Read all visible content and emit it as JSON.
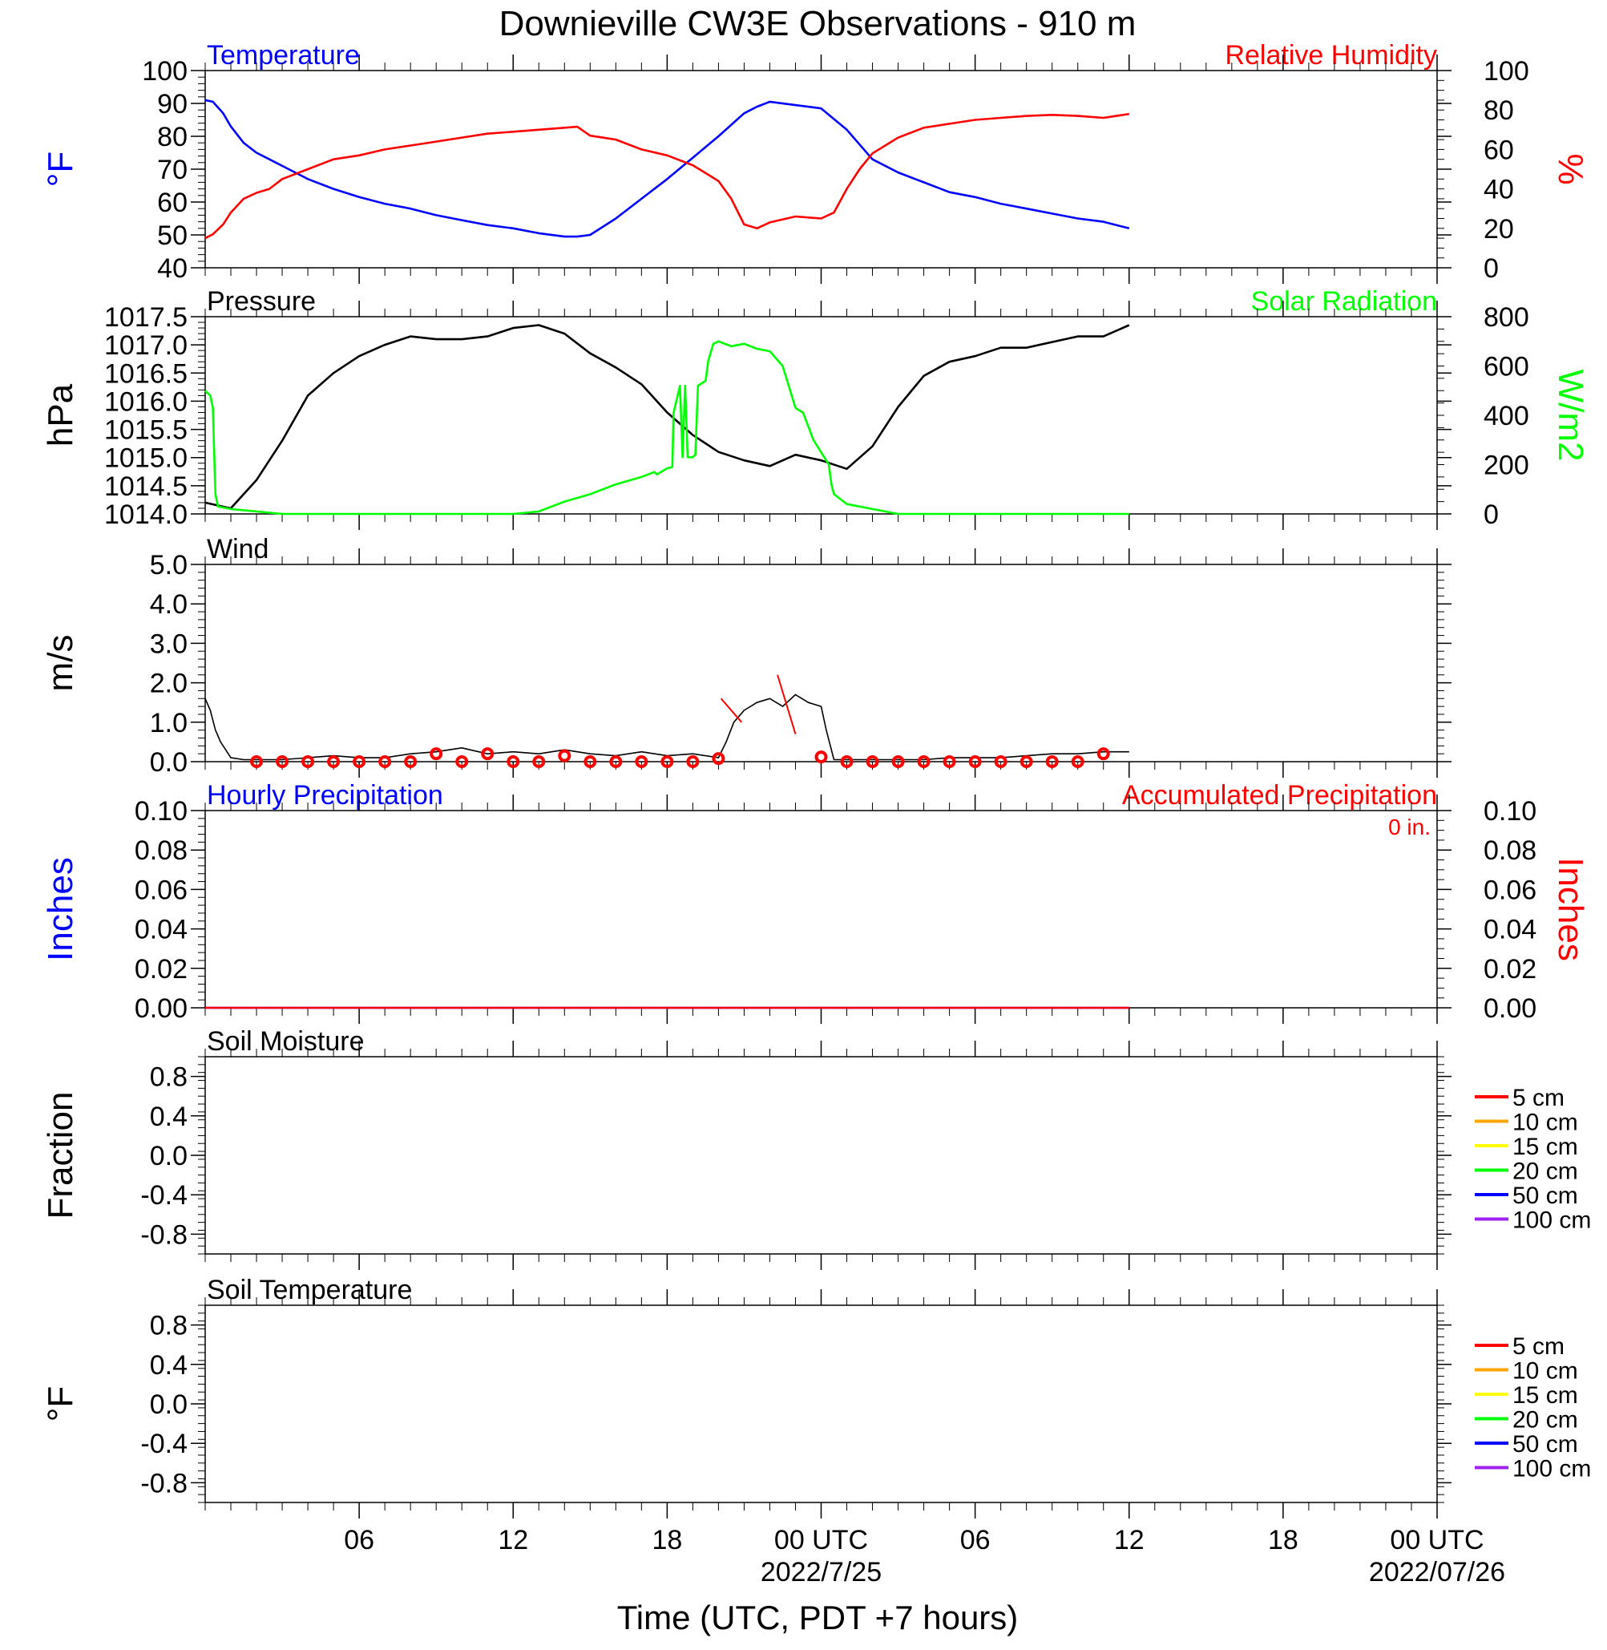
{
  "page": {
    "title": "Downieville CW3E Observations - 910 m",
    "xaxis_label": "Time (UTC, PDT +7 hours)",
    "x_ticks": [
      "06",
      "12",
      "18",
      "00 UTC",
      "06",
      "12",
      "18",
      "00 UTC"
    ],
    "x_dates": [
      "2022/7/25",
      "2022/07/26"
    ]
  },
  "colors": {
    "blue": "#0000ff",
    "red": "#ff0000",
    "green": "#00ff00",
    "black": "#000000",
    "orange": "#ffa500",
    "yellow": "#ffff00",
    "purple": "#a020f0"
  },
  "chart_data": [
    {
      "type": "line",
      "title_left": "Temperature",
      "title_right": "Relative Humidity",
      "ylabel_left": "°F",
      "ylabel_right": "%",
      "xlim": [
        0,
        48
      ],
      "ylim_left": [
        40,
        100
      ],
      "ylim_right": [
        0,
        100
      ],
      "yticks_left": [
        "40",
        "50",
        "60",
        "70",
        "80",
        "90",
        "100"
      ],
      "yticks_right": [
        "0",
        "20",
        "40",
        "60",
        "80",
        "100"
      ],
      "series": [
        {
          "name": "Temperature",
          "axis": "left",
          "color": "blue",
          "x": [
            0,
            0.3,
            0.7,
            1,
            1.5,
            2,
            2.5,
            3,
            4,
            5,
            6,
            7,
            8,
            9,
            10,
            11,
            12,
            13,
            14,
            14.5,
            15,
            16,
            17,
            18,
            19,
            20,
            21,
            21.5,
            22,
            23,
            24,
            25,
            26,
            27,
            28,
            29,
            30,
            31,
            32,
            33,
            34,
            35,
            36
          ],
          "y": [
            91,
            90.5,
            87,
            83,
            78,
            75,
            73,
            71,
            67,
            64,
            61.5,
            59.5,
            58,
            56,
            54.5,
            53,
            52,
            50.5,
            49.5,
            49.5,
            50,
            55,
            61,
            67,
            73.5,
            80,
            87,
            89,
            90.5,
            89.5,
            88.5,
            82,
            73,
            69,
            66,
            63,
            61.5,
            59.5,
            58,
            56.5,
            55,
            54,
            52
          ]
        },
        {
          "name": "Relative Humidity",
          "axis": "right",
          "color": "red",
          "x": [
            0,
            0.3,
            0.7,
            1,
            1.5,
            2,
            2.5,
            3,
            4,
            5,
            6,
            7,
            8,
            9,
            10,
            11,
            12,
            13,
            14,
            14.5,
            15,
            16,
            17,
            18,
            19,
            19.5,
            20,
            20.5,
            21,
            21.5,
            22,
            23,
            24,
            24.5,
            25,
            25.5,
            26,
            27,
            28,
            29,
            30,
            31,
            32,
            33,
            34,
            35,
            36
          ],
          "y": [
            15,
            17,
            22,
            28,
            35,
            38,
            40,
            45,
            50,
            55,
            57,
            60,
            62,
            64,
            66,
            68,
            69,
            70,
            71,
            71.5,
            67,
            65,
            60,
            57,
            52,
            48,
            44,
            35,
            22,
            20,
            23,
            26,
            25,
            28,
            40,
            50,
            58,
            66,
            71,
            73,
            75,
            76,
            77,
            77.5,
            77,
            76,
            78
          ]
        }
      ]
    },
    {
      "type": "line",
      "title_left": "Pressure",
      "title_right": "Solar Radiation",
      "ylabel_left": "hPa",
      "ylabel_right": "W/m2",
      "xlim": [
        0,
        48
      ],
      "ylim_left": [
        1014.0,
        1017.5
      ],
      "ylim_right": [
        0,
        800
      ],
      "yticks_left": [
        "1014.0",
        "1014.5",
        "1015.0",
        "1015.5",
        "1016.0",
        "1016.5",
        "1017.0",
        "1017.5"
      ],
      "yticks_right": [
        "0",
        "200",
        "400",
        "600",
        "800"
      ],
      "series": [
        {
          "name": "Pressure",
          "axis": "left",
          "color": "black",
          "x": [
            0,
            0.5,
            1,
            2,
            3,
            4,
            5,
            6,
            7,
            8,
            9,
            10,
            11,
            12,
            13,
            14,
            15,
            16,
            17,
            18,
            19,
            20,
            21,
            22,
            23,
            24,
            25,
            26,
            27,
            28,
            29,
            30,
            31,
            32,
            33,
            34,
            35,
            36
          ],
          "y": [
            1014.2,
            1014.15,
            1014.1,
            1014.6,
            1015.3,
            1016.1,
            1016.5,
            1016.8,
            1017.0,
            1017.15,
            1017.1,
            1017.1,
            1017.15,
            1017.3,
            1017.35,
            1017.2,
            1016.85,
            1016.6,
            1016.3,
            1015.8,
            1015.4,
            1015.1,
            1014.95,
            1014.85,
            1015.05,
            1014.95,
            1014.8,
            1015.2,
            1015.9,
            1016.45,
            1016.7,
            1016.8,
            1016.95,
            1016.95,
            1017.05,
            1017.15,
            1017.15,
            1017.35
          ]
        },
        {
          "name": "Solar Radiation",
          "axis": "right",
          "color": "green",
          "x": [
            0,
            0.2,
            0.3,
            0.35,
            0.4,
            0.5,
            1,
            2,
            3,
            4,
            5,
            6,
            7,
            8,
            9,
            10,
            11,
            12,
            13,
            14,
            15,
            16,
            17,
            17.5,
            17.6,
            18,
            18.2,
            18.25,
            18.5,
            18.6,
            18.7,
            18.8,
            19,
            19.1,
            19.2,
            19.5,
            19.6,
            19.8,
            20,
            20.5,
            21,
            21.5,
            22,
            22.5,
            23,
            23.3,
            23.7,
            24,
            24.3,
            24.4,
            24.5,
            25,
            26,
            27,
            28,
            29,
            30,
            31,
            32,
            33,
            34,
            35,
            36
          ],
          "y": [
            500,
            480,
            430,
            250,
            80,
            30,
            20,
            10,
            0,
            0,
            0,
            0,
            0,
            0,
            0,
            0,
            0,
            0,
            10,
            50,
            80,
            120,
            150,
            170,
            160,
            185,
            190,
            410,
            520,
            230,
            520,
            230,
            230,
            240,
            520,
            540,
            620,
            690,
            700,
            680,
            690,
            670,
            660,
            600,
            430,
            410,
            300,
            250,
            200,
            120,
            80,
            40,
            20,
            0,
            0,
            0,
            0,
            0,
            0,
            0,
            0,
            0,
            0
          ]
        }
      ]
    },
    {
      "type": "line",
      "title_left": "Wind",
      "ylabel_left": "m/s",
      "xlim": [
        0,
        48
      ],
      "ylim_left": [
        0,
        5
      ],
      "yticks_left": [
        "0.0",
        "1.0",
        "2.0",
        "3.0",
        "4.0",
        "5.0"
      ],
      "series": [
        {
          "name": "Wind Speed",
          "axis": "left",
          "color": "black",
          "x": [
            0,
            0.2,
            0.4,
            0.6,
            0.8,
            1,
            1.5,
            2,
            3,
            4,
            5,
            6,
            7,
            8,
            9,
            10,
            11,
            12,
            13,
            14,
            15,
            16,
            17,
            18,
            19,
            20,
            20.3,
            20.6,
            21,
            21.5,
            22,
            22.5,
            23,
            23.5,
            24,
            24.2,
            24.5,
            25,
            26,
            27,
            28,
            29,
            30,
            31,
            32,
            33,
            34,
            35,
            36
          ],
          "y": [
            1.6,
            1.3,
            0.8,
            0.5,
            0.3,
            0.1,
            0.05,
            0.05,
            0.05,
            0.1,
            0.15,
            0.1,
            0.1,
            0.2,
            0.25,
            0.35,
            0.2,
            0.25,
            0.2,
            0.3,
            0.2,
            0.15,
            0.25,
            0.15,
            0.2,
            0.1,
            0.5,
            1.0,
            1.3,
            1.5,
            1.6,
            1.4,
            1.7,
            1.5,
            1.4,
            0.8,
            0.05,
            0.05,
            0.05,
            0.05,
            0.05,
            0.1,
            0.1,
            0.1,
            0.15,
            0.2,
            0.2,
            0.25,
            0.25
          ]
        },
        {
          "name": "Hourly Wind",
          "axis": "left",
          "color": "red",
          "x": [
            2,
            3,
            4,
            5,
            6,
            7,
            8,
            9,
            10,
            11,
            12,
            13,
            14,
            15,
            16,
            17,
            18,
            19,
            20,
            24,
            25,
            26,
            27,
            28,
            29,
            30,
            31,
            32,
            33,
            34,
            35
          ],
          "y": [
            0.0,
            0.0,
            0.0,
            0.0,
            0.0,
            0.0,
            0.0,
            0.2,
            0.0,
            0.2,
            0.0,
            0.0,
            0.15,
            0.0,
            0.0,
            0.0,
            0.0,
            0.0,
            0.08,
            0.12,
            0.0,
            0.0,
            0.0,
            0.0,
            0.0,
            0.0,
            0.0,
            0.0,
            0.0,
            0.0,
            0.2
          ]
        }
      ]
    },
    {
      "type": "line",
      "title_left": "Hourly Precipitation",
      "title_right": "Accumulated Precipitation",
      "annotation": "0 in.",
      "ylabel_left": "Inches",
      "ylabel_right": "Inches",
      "xlim": [
        0,
        48
      ],
      "ylim_left": [
        0,
        0.1
      ],
      "ylim_right": [
        0,
        0.1
      ],
      "yticks_left": [
        "0.00",
        "0.02",
        "0.04",
        "0.06",
        "0.08",
        "0.10"
      ],
      "yticks_right": [
        "0.00",
        "0.02",
        "0.04",
        "0.06",
        "0.08",
        "0.10"
      ],
      "series": [
        {
          "name": "Hourly Precipitation",
          "axis": "left",
          "color": "blue",
          "x": [
            0,
            36
          ],
          "y": [
            0,
            0
          ]
        },
        {
          "name": "Accumulated Precipitation",
          "axis": "right",
          "color": "red",
          "x": [
            0,
            36
          ],
          "y": [
            0,
            0
          ]
        }
      ]
    },
    {
      "type": "line",
      "title_left": "Soil Moisture",
      "ylabel_left": "Fraction",
      "xlim": [
        0,
        48
      ],
      "ylim_left": [
        -1,
        1
      ],
      "yticks_left": [
        "-0.8",
        "-0.4",
        "0.0",
        "0.4",
        "0.8"
      ],
      "legend": [
        {
          "label": "5 cm",
          "color": "red"
        },
        {
          "label": "10 cm",
          "color": "orange"
        },
        {
          "label": "15 cm",
          "color": "yellow"
        },
        {
          "label": "20 cm",
          "color": "green"
        },
        {
          "label": "50 cm",
          "color": "blue"
        },
        {
          "label": "100 cm",
          "color": "purple"
        }
      ],
      "series": []
    },
    {
      "type": "line",
      "title_left": "Soil Temperature",
      "ylabel_left": "°F",
      "xlim": [
        0,
        48
      ],
      "ylim_left": [
        -1,
        1
      ],
      "yticks_left": [
        "-0.8",
        "-0.4",
        "0.0",
        "0.4",
        "0.8"
      ],
      "legend": [
        {
          "label": "5 cm",
          "color": "red"
        },
        {
          "label": "10 cm",
          "color": "orange"
        },
        {
          "label": "15 cm",
          "color": "yellow"
        },
        {
          "label": "20 cm",
          "color": "green"
        },
        {
          "label": "50 cm",
          "color": "blue"
        },
        {
          "label": "100 cm",
          "color": "purple"
        }
      ],
      "series": []
    }
  ]
}
